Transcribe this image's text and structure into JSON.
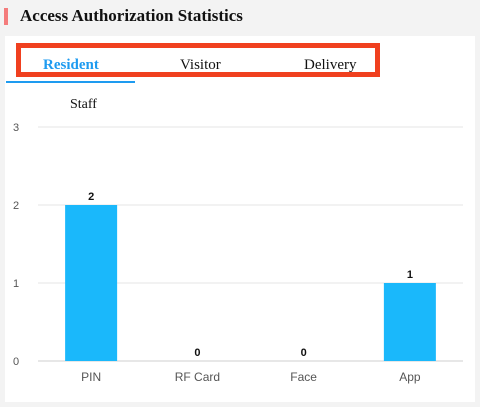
{
  "header": {
    "title": "Access Authorization Statistics"
  },
  "tabs": [
    {
      "label": "Resident",
      "active": true
    },
    {
      "label": "Visitor",
      "active": false
    },
    {
      "label": "Delivery",
      "active": false
    }
  ],
  "colors": {
    "accent": "#1e9bf0",
    "bar": "#1ab8fb",
    "highlight": "#f0401f",
    "header_marker": "#f47c7c"
  },
  "chart_data": {
    "type": "bar",
    "title": "Staff",
    "categories": [
      "PIN",
      "RF Card",
      "Face",
      "App"
    ],
    "values": [
      2,
      0,
      0,
      1
    ],
    "ylim": [
      0,
      3
    ],
    "yticks": [
      0,
      1,
      2,
      3
    ],
    "grid": true,
    "xlabel": "",
    "ylabel": ""
  }
}
